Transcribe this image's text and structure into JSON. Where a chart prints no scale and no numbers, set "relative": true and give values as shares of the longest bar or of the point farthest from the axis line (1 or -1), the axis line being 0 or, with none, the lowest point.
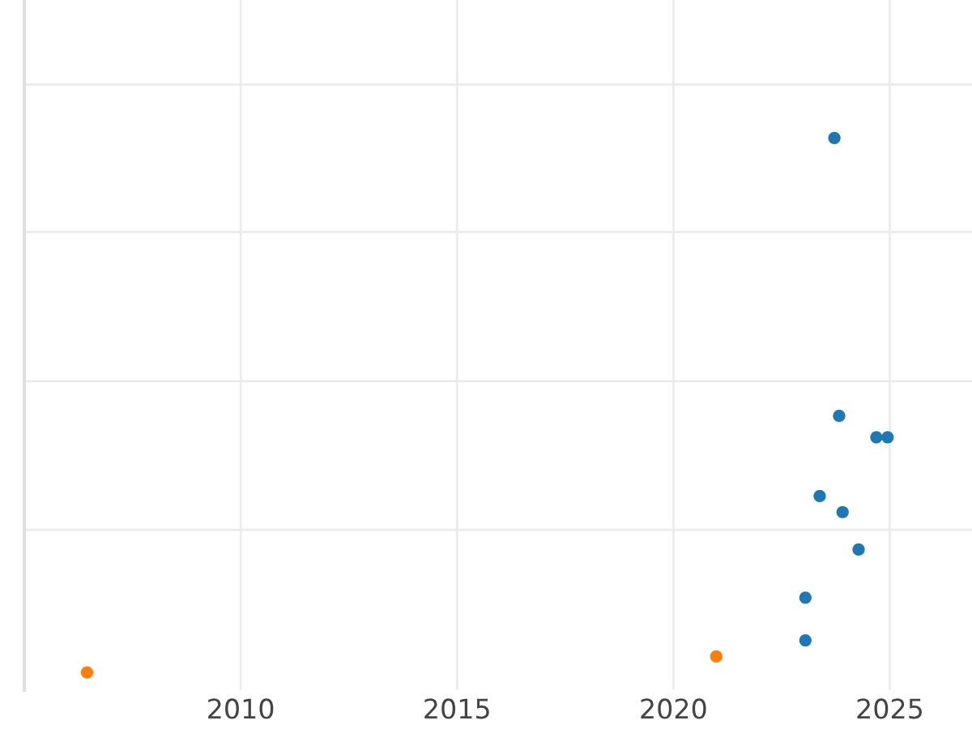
{
  "chart_data": {
    "type": "scatter",
    "relative": true,
    "xlim": [
      2005.0,
      2026.9
    ],
    "xticks": [
      2010,
      2015,
      2020,
      2025
    ],
    "tick_labels": "x",
    "grid": true,
    "marker": "circle",
    "series": [
      {
        "color": "#1f77b4",
        "x": [
          2023.72,
          2023.83,
          2024.69,
          2024.95,
          2023.38,
          2023.91,
          2024.28,
          2023.05,
          2023.05
        ],
        "values": [
          1,
          0.48,
          0.44,
          0.44,
          0.33,
          0.3,
          0.23,
          0.14,
          0.06
        ]
      },
      {
        "color": "#ff7f0e",
        "x": [
          2006.45,
          2020.99
        ],
        "values": [
          0,
          0.03
        ]
      }
    ]
  }
}
